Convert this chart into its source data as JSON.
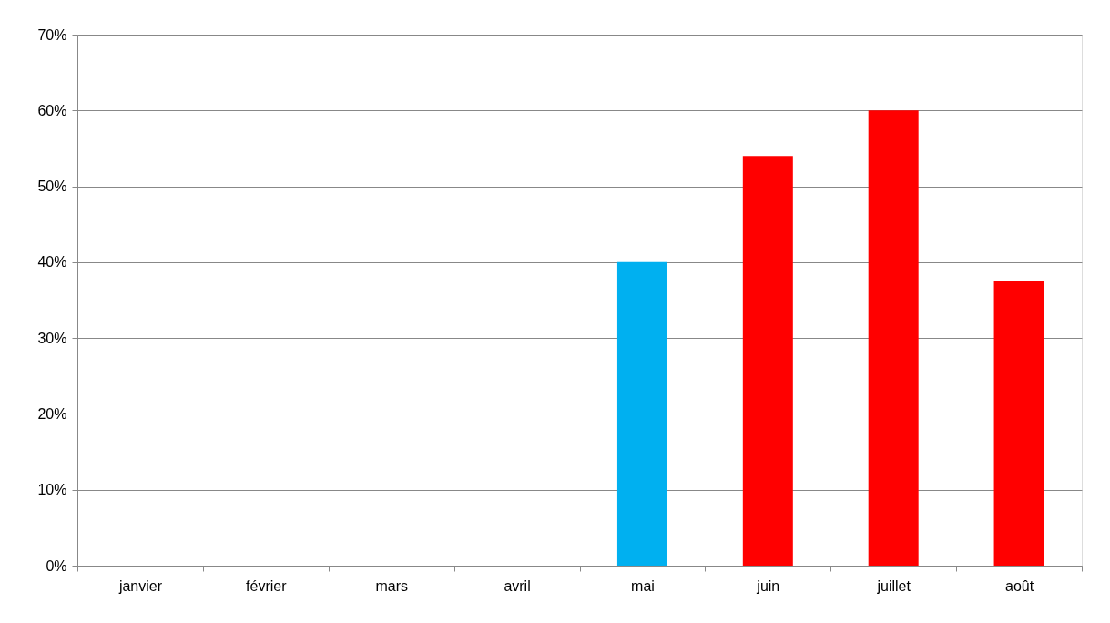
{
  "chart_data": {
    "type": "bar",
    "categories": [
      "janvier",
      "février",
      "mars",
      "avril",
      "mai",
      "juin",
      "juillet",
      "août"
    ],
    "values": [
      null,
      null,
      null,
      null,
      40,
      54,
      60,
      37.5
    ],
    "colors": [
      "#ff0000",
      "#ff0000",
      "#ff0000",
      "#ff0000",
      "#00b0f0",
      "#ff0000",
      "#ff0000",
      "#ff0000"
    ],
    "ylim": [
      0,
      70
    ],
    "yticks": [
      {
        "value": 0,
        "label": "0%"
      },
      {
        "value": 10,
        "label": "10%"
      },
      {
        "value": 20,
        "label": "20%"
      },
      {
        "value": 30,
        "label": "30%"
      },
      {
        "value": 40,
        "label": "40%"
      },
      {
        "value": 50,
        "label": "50%"
      },
      {
        "value": 60,
        "label": "60%"
      },
      {
        "value": 70,
        "label": "70%"
      }
    ],
    "grid": "y"
  }
}
